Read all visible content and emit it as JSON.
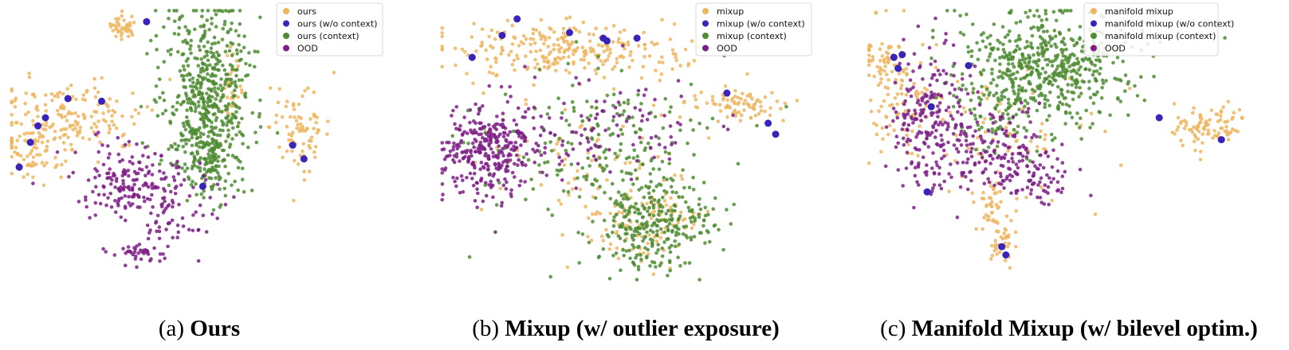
{
  "colors": {
    "base": "#EDB660",
    "no_context": "#3A23B8",
    "context": "#4F8C33",
    "ood": "#7E1E86"
  },
  "chart_data": [
    {
      "type": "scatter",
      "caption_label": "(a)",
      "caption_title": "Ours",
      "legend": [
        "ours",
        "ours (w/o context)",
        "ours (context)",
        "OOD"
      ],
      "legend_placement": "top-right",
      "axes_visible": false,
      "clusters": [
        {
          "series": 0,
          "n": 40,
          "cx": 0.31,
          "cy": 0.07,
          "sx": 0.018,
          "sy": 0.022
        },
        {
          "series": 0,
          "n": 170,
          "cx": 0.16,
          "cy": 0.4,
          "sx": 0.1,
          "sy": 0.07
        },
        {
          "series": 0,
          "n": 60,
          "cx": 0.06,
          "cy": 0.53,
          "sx": 0.04,
          "sy": 0.05
        },
        {
          "series": 0,
          "n": 30,
          "cx": 0.6,
          "cy": 0.3,
          "sx": 0.015,
          "sy": 0.06
        },
        {
          "series": 0,
          "n": 80,
          "cx": 0.78,
          "cy": 0.44,
          "sx": 0.04,
          "sy": 0.08
        },
        {
          "series": 2,
          "n": 550,
          "cx": 0.53,
          "cy": 0.32,
          "sx": 0.06,
          "sy": 0.17
        },
        {
          "series": 2,
          "n": 80,
          "cx": 0.54,
          "cy": 0.56,
          "sx": 0.025,
          "sy": 0.06
        },
        {
          "series": 3,
          "n": 170,
          "cx": 0.33,
          "cy": 0.63,
          "sx": 0.07,
          "sy": 0.06
        },
        {
          "series": 3,
          "n": 60,
          "cx": 0.44,
          "cy": 0.74,
          "sx": 0.06,
          "sy": 0.07
        },
        {
          "series": 3,
          "n": 40,
          "cx": 0.36,
          "cy": 0.89,
          "sx": 0.04,
          "sy": 0.02
        }
      ],
      "points_no_context": [
        [
          0.37,
          0.05
        ],
        [
          0.16,
          0.33
        ],
        [
          0.25,
          0.34
        ],
        [
          0.1,
          0.4
        ],
        [
          0.08,
          0.43
        ],
        [
          0.06,
          0.49
        ],
        [
          0.03,
          0.58
        ],
        [
          0.76,
          0.5
        ],
        [
          0.79,
          0.55
        ],
        [
          0.52,
          0.65
        ]
      ]
    },
    {
      "type": "scatter",
      "caption_label": "(b)",
      "caption_title": "Mixup (w/ outlier exposure)",
      "legend": [
        "mixup",
        "mixup (w/o context)",
        "mixup (context)",
        "OOD"
      ],
      "legend_placement": "top-right",
      "axes_visible": false,
      "clusters": [
        {
          "series": 0,
          "n": 260,
          "cx": 0.33,
          "cy": 0.15,
          "sx": 0.16,
          "sy": 0.05
        },
        {
          "series": 0,
          "n": 80,
          "cx": 0.8,
          "cy": 0.35,
          "sx": 0.06,
          "sy": 0.03
        },
        {
          "series": 0,
          "n": 120,
          "cx": 0.54,
          "cy": 0.78,
          "sx": 0.08,
          "sy": 0.09
        },
        {
          "series": 0,
          "n": 60,
          "cx": 0.4,
          "cy": 0.5,
          "sx": 0.15,
          "sy": 0.12
        },
        {
          "series": 2,
          "n": 300,
          "cx": 0.57,
          "cy": 0.79,
          "sx": 0.08,
          "sy": 0.09
        },
        {
          "series": 2,
          "n": 180,
          "cx": 0.4,
          "cy": 0.48,
          "sx": 0.16,
          "sy": 0.12
        },
        {
          "series": 3,
          "n": 300,
          "cx": 0.13,
          "cy": 0.53,
          "sx": 0.06,
          "sy": 0.08
        },
        {
          "series": 3,
          "n": 120,
          "cx": 0.4,
          "cy": 0.45,
          "sx": 0.15,
          "sy": 0.1
        }
      ],
      "points_no_context": [
        [
          0.21,
          0.04
        ],
        [
          0.17,
          0.1
        ],
        [
          0.35,
          0.09
        ],
        [
          0.44,
          0.11
        ],
        [
          0.45,
          0.12
        ],
        [
          0.53,
          0.11
        ],
        [
          0.09,
          0.18
        ],
        [
          0.77,
          0.31
        ],
        [
          0.88,
          0.42
        ],
        [
          0.9,
          0.46
        ]
      ]
    },
    {
      "type": "scatter",
      "caption_label": "(c)",
      "caption_title": "Manifold Mixup (w/ bilevel optim.)",
      "legend": [
        "manifold mixup",
        "manifold mixup (w/o context)",
        "manifold mixup (context)",
        "OOD"
      ],
      "legend_placement": "top-right",
      "axes_visible": false,
      "clusters": [
        {
          "series": 0,
          "n": 90,
          "cx": 0.08,
          "cy": 0.3,
          "sx": 0.04,
          "sy": 0.12
        },
        {
          "series": 0,
          "n": 40,
          "cx": 0.05,
          "cy": 0.18,
          "sx": 0.03,
          "sy": 0.03
        },
        {
          "series": 0,
          "n": 90,
          "cx": 0.83,
          "cy": 0.42,
          "sx": 0.05,
          "sy": 0.04
        },
        {
          "series": 0,
          "n": 40,
          "cx": 0.33,
          "cy": 0.85,
          "sx": 0.015,
          "sy": 0.05
        },
        {
          "series": 0,
          "n": 30,
          "cx": 0.3,
          "cy": 0.72,
          "sx": 0.015,
          "sy": 0.04
        },
        {
          "series": 0,
          "n": 80,
          "cx": 0.32,
          "cy": 0.5,
          "sx": 0.1,
          "sy": 0.12
        },
        {
          "series": 2,
          "n": 520,
          "cx": 0.44,
          "cy": 0.2,
          "sx": 0.1,
          "sy": 0.1
        },
        {
          "series": 2,
          "n": 90,
          "cx": 0.35,
          "cy": 0.38,
          "sx": 0.07,
          "sy": 0.08
        },
        {
          "series": 3,
          "n": 220,
          "cx": 0.16,
          "cy": 0.42,
          "sx": 0.05,
          "sy": 0.13
        },
        {
          "series": 3,
          "n": 150,
          "cx": 0.31,
          "cy": 0.52,
          "sx": 0.07,
          "sy": 0.08
        },
        {
          "series": 3,
          "n": 60,
          "cx": 0.4,
          "cy": 0.63,
          "sx": 0.06,
          "sy": 0.04
        }
      ],
      "points_no_context": [
        [
          0.07,
          0.18
        ],
        [
          0.09,
          0.17
        ],
        [
          0.08,
          0.22
        ],
        [
          0.25,
          0.21
        ],
        [
          0.16,
          0.36
        ],
        [
          0.15,
          0.67
        ],
        [
          0.71,
          0.4
        ],
        [
          0.86,
          0.48
        ],
        [
          0.33,
          0.87
        ],
        [
          0.34,
          0.9
        ]
      ]
    }
  ]
}
